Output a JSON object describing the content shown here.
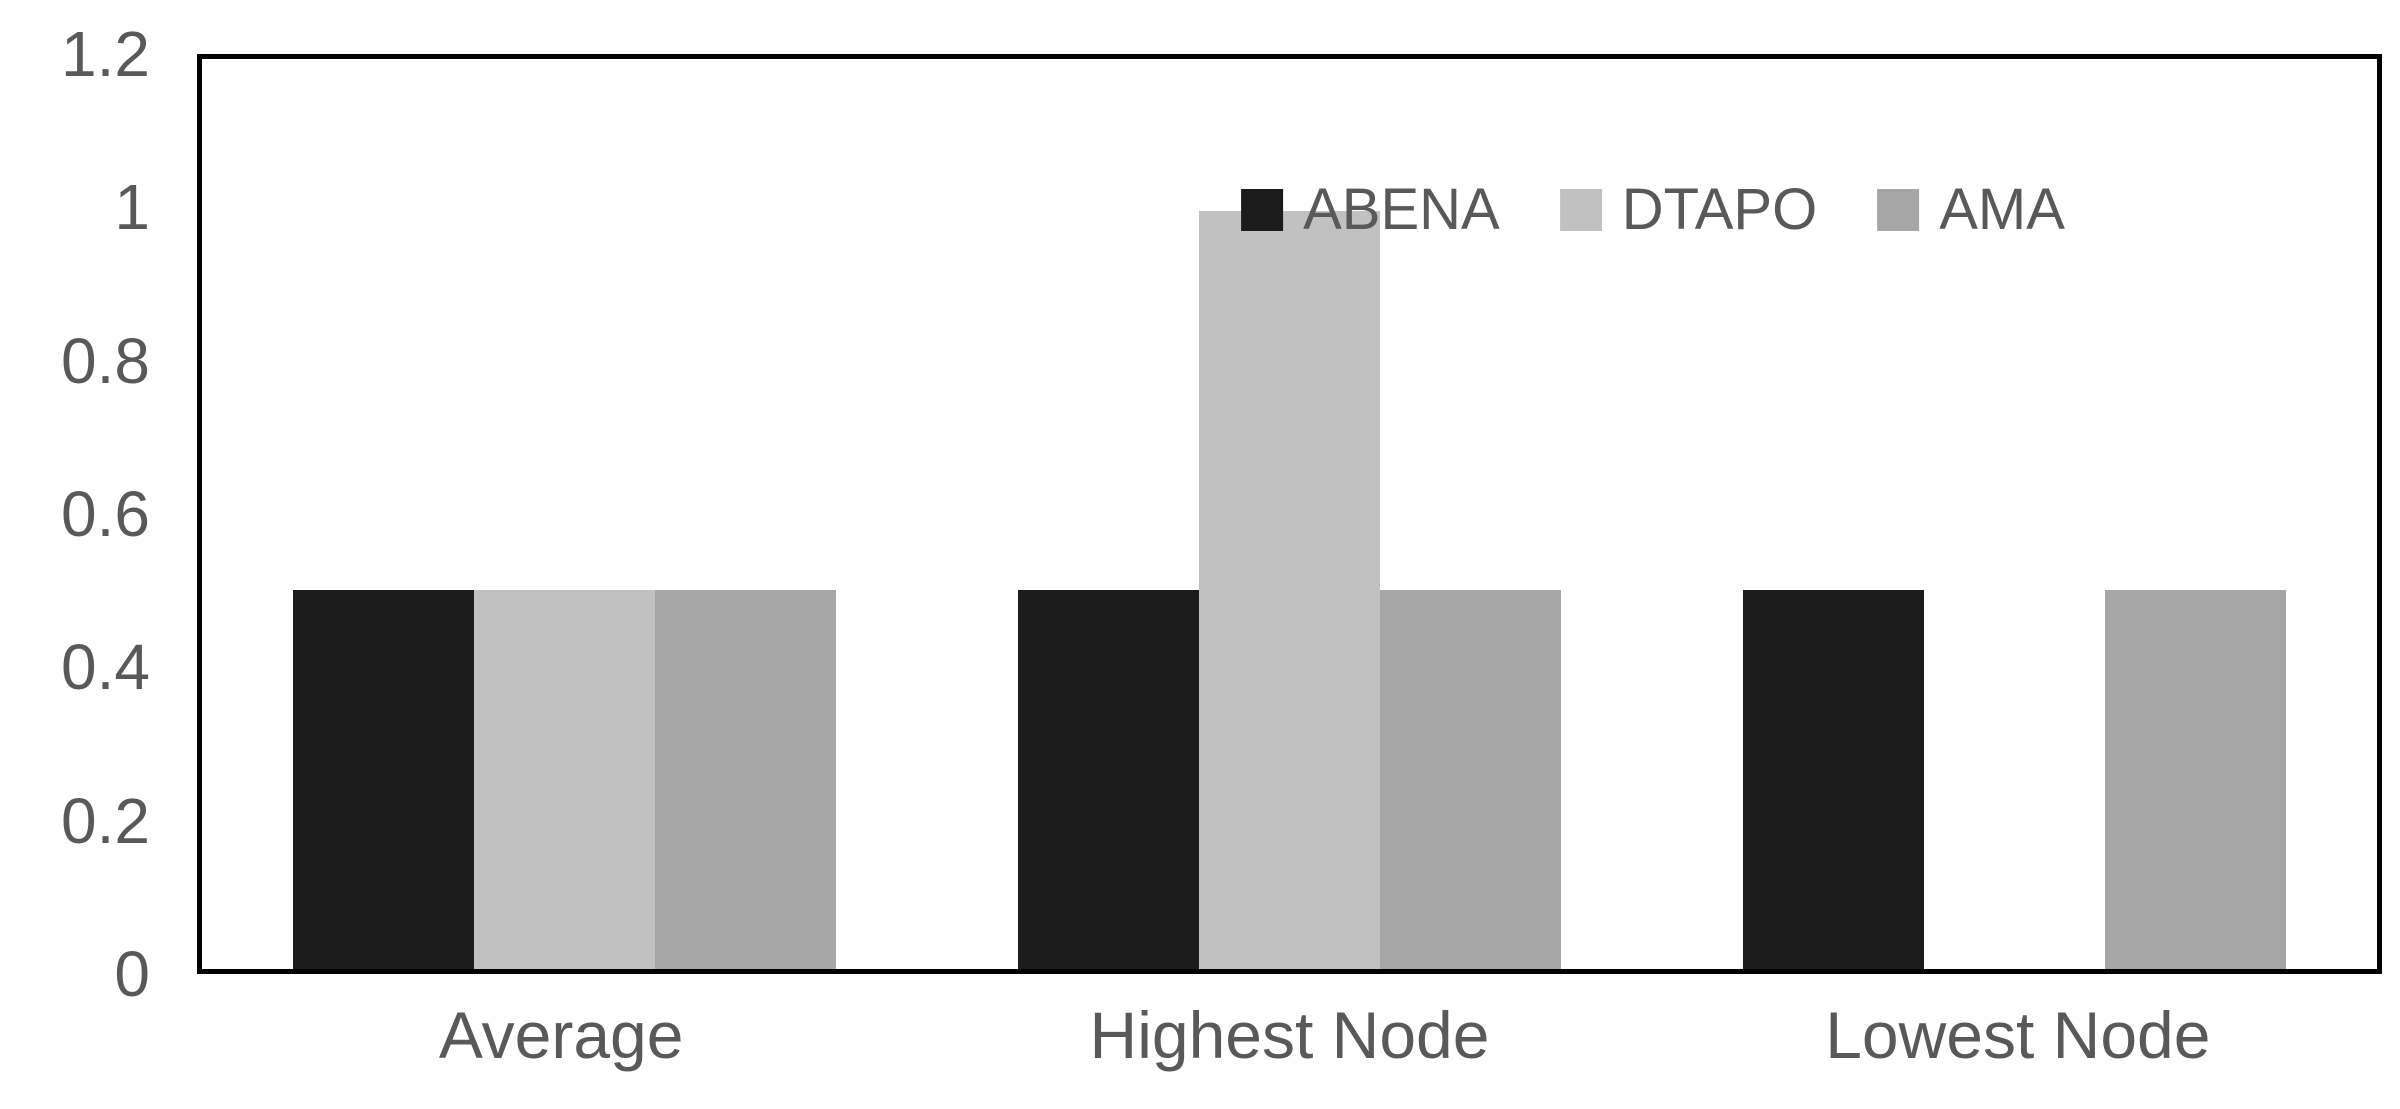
{
  "chart_data": {
    "type": "bar",
    "title": "",
    "xlabel": "",
    "ylabel": "",
    "categories": [
      "Average",
      "Highest Node",
      "Lowest Node"
    ],
    "series": [
      {
        "name": "ABENA",
        "color": "#1b1b1b",
        "values": [
          0.5,
          0.5,
          0.5
        ]
      },
      {
        "name": "DTAPO",
        "color": "#c1c1c1",
        "values": [
          0.5,
          1.0,
          0
        ]
      },
      {
        "name": "AMA",
        "color": "#a6a6a6",
        "values": [
          0.5,
          0.5,
          0.5
        ]
      }
    ],
    "ylim": [
      0,
      1.2
    ],
    "ytick_labels": [
      "0",
      "0.2",
      "0.4",
      "0.6",
      "0.8",
      "1",
      "1.2"
    ],
    "grid": false,
    "legend_position": "top-center-inside",
    "text_color": "#595959",
    "plot_border_color": "#000000",
    "background_color": "#ffffff"
  }
}
